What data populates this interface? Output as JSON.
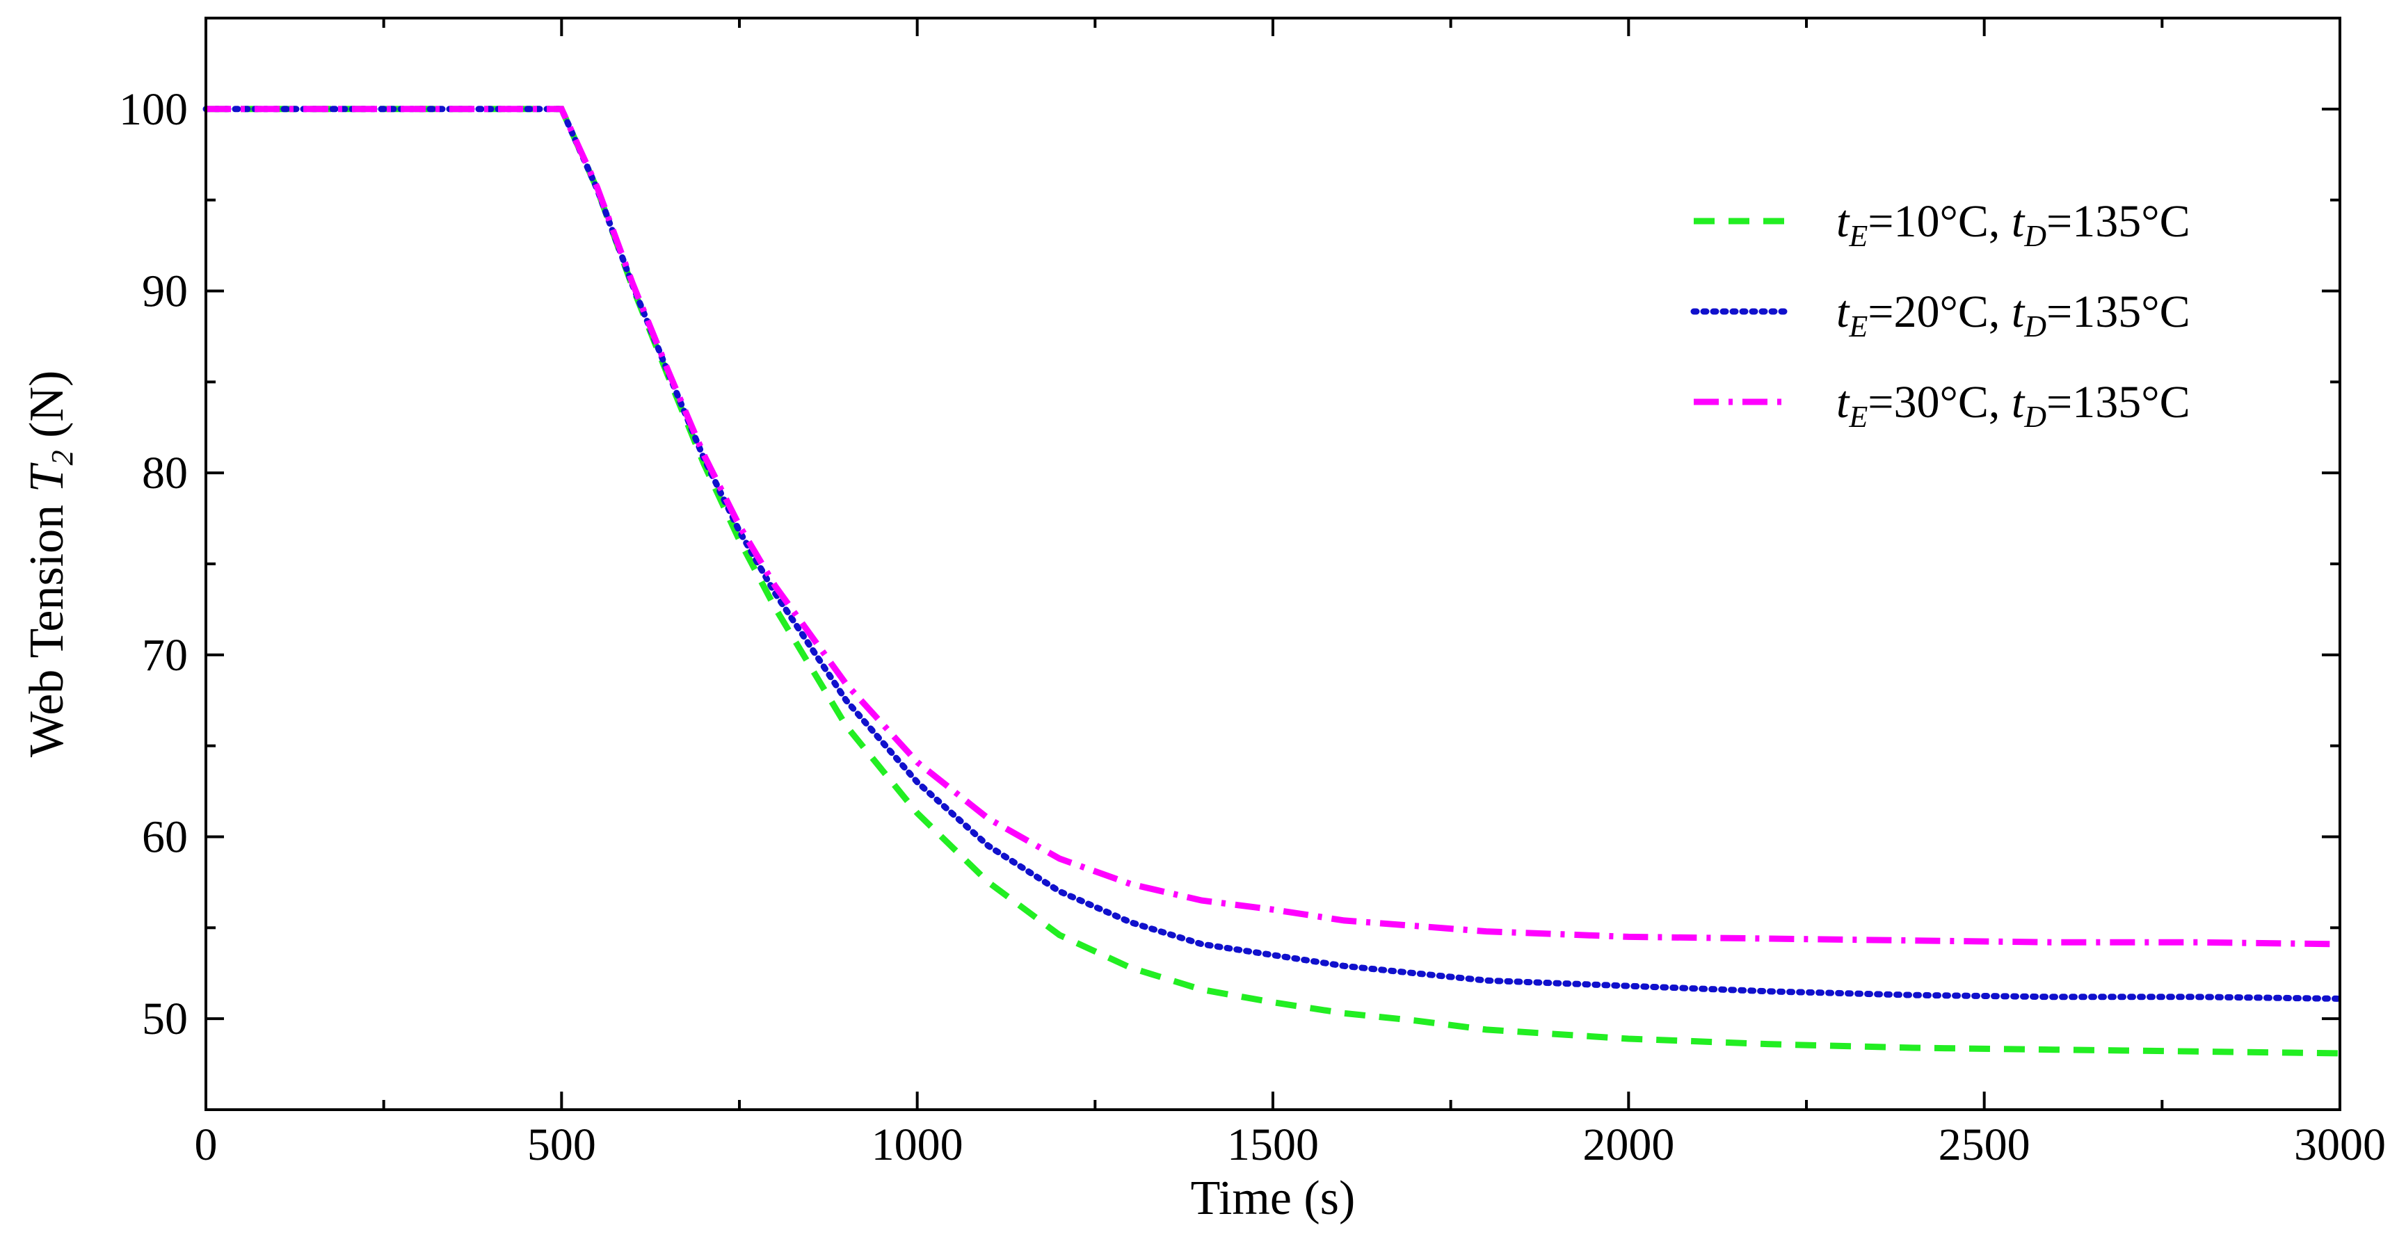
{
  "chart_data": {
    "type": "line",
    "title": "",
    "xlabel": "Time (s)",
    "ylabel": {
      "prefix": "Web Tension ",
      "var": "T",
      "sub": "2",
      "suffix": " (N)"
    },
    "xlim": [
      0,
      3000
    ],
    "ylim": [
      45,
      105
    ],
    "xticks": [
      0,
      500,
      1000,
      1500,
      2000,
      2500,
      3000
    ],
    "yticks": [
      50,
      60,
      70,
      80,
      90,
      100
    ],
    "x": [
      0,
      100,
      200,
      300,
      400,
      500,
      550,
      600,
      650,
      700,
      750,
      800,
      900,
      1000,
      1100,
      1200,
      1300,
      1400,
      1500,
      1600,
      1700,
      1800,
      2000,
      2200,
      2400,
      2600,
      2800,
      3000
    ],
    "series": [
      {
        "name": "tE=10°C, tD=135°C",
        "legend": {
          "v1": "t",
          "s1": "E",
          "mid": "=10°C, ",
          "v2": "t",
          "s2": "D",
          "end": "=135°C"
        },
        "color": "#22ee22",
        "dash": "dashed",
        "values": [
          100,
          100,
          100,
          100,
          100,
          100,
          95.6,
          90.2,
          85.3,
          80.5,
          76.3,
          72.6,
          66.1,
          61.3,
          57.5,
          54.6,
          52.8,
          51.6,
          50.9,
          50.3,
          49.9,
          49.4,
          48.9,
          48.6,
          48.4,
          48.3,
          48.2,
          48.1
        ]
      },
      {
        "name": "tE=20°C, tD=135°C",
        "legend": {
          "v1": "t",
          "s1": "E",
          "mid": "=20°C, ",
          "v2": "t",
          "s2": "D",
          "end": "=135°C"
        },
        "color": "#1010cc",
        "dash": "dotted",
        "values": [
          100,
          100,
          100,
          100,
          100,
          100,
          95.6,
          90.3,
          85.5,
          80.8,
          76.8,
          73.4,
          67.5,
          63.0,
          59.5,
          57.0,
          55.3,
          54.1,
          53.5,
          52.9,
          52.5,
          52.1,
          51.8,
          51.5,
          51.3,
          51.2,
          51.2,
          51.1
        ]
      },
      {
        "name": "tE=30°C, tD=135°C",
        "legend": {
          "v1": "t",
          "s1": "E",
          "mid": "=30°C, ",
          "v2": "t",
          "s2": "D",
          "end": "=135°C"
        },
        "color": "#ff00ff",
        "dash": "dashdot",
        "values": [
          100,
          100,
          100,
          100,
          100,
          100,
          95.7,
          90.4,
          85.6,
          81.0,
          77.1,
          73.8,
          68.4,
          64.1,
          61.0,
          58.8,
          57.4,
          56.5,
          56.0,
          55.4,
          55.1,
          54.8,
          54.5,
          54.4,
          54.3,
          54.2,
          54.2,
          54.1
        ]
      }
    ],
    "legend_position": "top-right"
  }
}
